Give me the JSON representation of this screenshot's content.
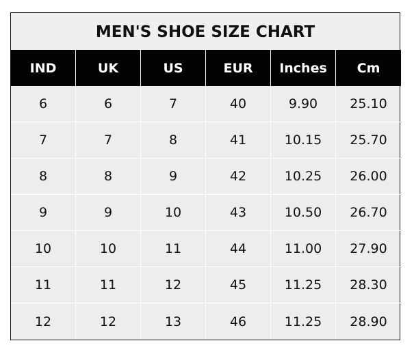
{
  "chart_data": {
    "type": "table",
    "title": "MEN'S SHOE SIZE CHART",
    "columns": [
      "IND",
      "UK",
      "US",
      "EUR",
      "Inches",
      "Cm"
    ],
    "rows": [
      [
        "6",
        "6",
        "7",
        "40",
        "9.90",
        "25.10"
      ],
      [
        "7",
        "7",
        "8",
        "41",
        "10.15",
        "25.70"
      ],
      [
        "8",
        "8",
        "9",
        "42",
        "10.25",
        "26.00"
      ],
      [
        "9",
        "9",
        "10",
        "43",
        "10.50",
        "26.70"
      ],
      [
        "10",
        "10",
        "11",
        "44",
        "11.00",
        "27.90"
      ],
      [
        "11",
        "11",
        "12",
        "45",
        "11.25",
        "28.30"
      ],
      [
        "12",
        "12",
        "13",
        "46",
        "11.25",
        "28.90"
      ]
    ]
  }
}
